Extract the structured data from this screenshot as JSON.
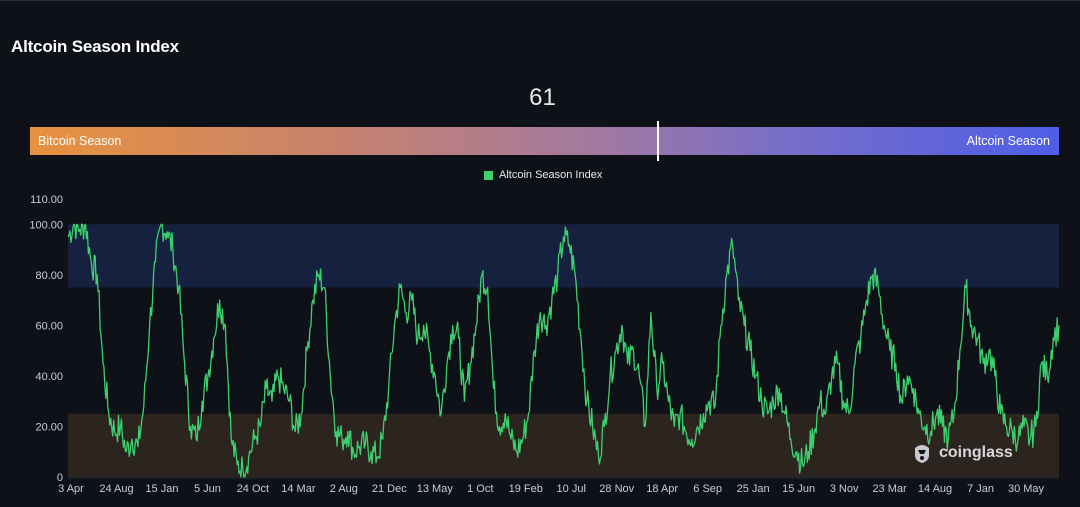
{
  "header": {
    "title": "Altcoin Season Index"
  },
  "indicator": {
    "value": "61",
    "value_number": 61,
    "left_label": "Bitcoin Season",
    "right_label": "Altcoin Season"
  },
  "watermark": {
    "text": "coinglass",
    "icon": "coinglass-logo-icon"
  },
  "colors": {
    "background": "#0e1117",
    "line": "#3ecf6e",
    "altcoin_zone": "#16213f",
    "bitcoin_zone": "#2c241f",
    "bar_start": "#e8923f",
    "bar_end": "#4e5ee6"
  },
  "chart_data": {
    "type": "line",
    "title": "",
    "legend": [
      "Altcoin Season Index"
    ],
    "legend_position": "top-center",
    "ylim": [
      0,
      110
    ],
    "yticks": [
      "0",
      "20.00",
      "40.00",
      "60.00",
      "80.00",
      "100.00",
      "110.00"
    ],
    "ytick_values": [
      0,
      20,
      40,
      60,
      80,
      100,
      110
    ],
    "x_tick_labels": [
      "3 Apr",
      "24 Aug",
      "15 Jan",
      "5 Jun",
      "24 Oct",
      "14 Mar",
      "2 Aug",
      "21 Dec",
      "13 May",
      "1 Oct",
      "19 Feb",
      "10 Jul",
      "28 Nov",
      "18 Apr",
      "6 Sep",
      "25 Jan",
      "15 Jun",
      "3 Nov",
      "23 Mar",
      "14 Aug",
      "7 Jan",
      "30 May"
    ],
    "bands": [
      {
        "name": "altcoin-season-zone",
        "from": 75,
        "to": 100
      },
      {
        "name": "bitcoin-season-zone",
        "from": 0,
        "to": 25
      }
    ],
    "grid": false,
    "series": [
      {
        "name": "Altcoin Season Index",
        "keypoints": [
          [
            0,
            95
          ],
          [
            0.25,
            100
          ],
          [
            0.5,
            98
          ],
          [
            0.75,
            100
          ],
          [
            1,
            85
          ],
          [
            1.25,
            80
          ],
          [
            1.5,
            45
          ],
          [
            1.75,
            25
          ],
          [
            2,
            18
          ],
          [
            2.25,
            20
          ],
          [
            2.5,
            10
          ],
          [
            2.75,
            15
          ],
          [
            3,
            12
          ],
          [
            3.25,
            28
          ],
          [
            3.5,
            60
          ],
          [
            3.75,
            85
          ],
          [
            4,
            100
          ],
          [
            4.25,
            97
          ],
          [
            4.5,
            90
          ],
          [
            4.75,
            75
          ],
          [
            5,
            45
          ],
          [
            5.25,
            20
          ],
          [
            5.5,
            15
          ],
          [
            5.75,
            30
          ],
          [
            6,
            40
          ],
          [
            6.25,
            55
          ],
          [
            6.5,
            70
          ],
          [
            6.75,
            60
          ],
          [
            7,
            15
          ],
          [
            7.25,
            5
          ],
          [
            7.5,
            3
          ],
          [
            7.75,
            8
          ],
          [
            8,
            15
          ],
          [
            8.25,
            20
          ],
          [
            8.5,
            35
          ],
          [
            8.75,
            30
          ],
          [
            9,
            40
          ],
          [
            9.25,
            35
          ],
          [
            9.5,
            30
          ],
          [
            9.75,
            18
          ],
          [
            10,
            25
          ],
          [
            10.25,
            50
          ],
          [
            10.5,
            70
          ],
          [
            10.75,
            80
          ],
          [
            11,
            75
          ],
          [
            11.25,
            40
          ],
          [
            11.5,
            18
          ],
          [
            11.75,
            15
          ],
          [
            12,
            18
          ],
          [
            12.25,
            10
          ],
          [
            12.5,
            12
          ],
          [
            12.75,
            13
          ],
          [
            13,
            10
          ],
          [
            13.25,
            8
          ],
          [
            13.5,
            15
          ],
          [
            13.75,
            35
          ],
          [
            14,
            60
          ],
          [
            14.25,
            75
          ],
          [
            14.5,
            65
          ],
          [
            14.75,
            70
          ],
          [
            15,
            55
          ],
          [
            15.25,
            60
          ],
          [
            15.5,
            50
          ],
          [
            15.75,
            40
          ],
          [
            16,
            25
          ],
          [
            16.25,
            45
          ],
          [
            16.5,
            60
          ],
          [
            16.75,
            55
          ],
          [
            17,
            30
          ],
          [
            17.25,
            45
          ],
          [
            17.5,
            60
          ],
          [
            17.75,
            80
          ],
          [
            18,
            75
          ],
          [
            18.25,
            35
          ],
          [
            18.5,
            20
          ],
          [
            18.75,
            25
          ],
          [
            19,
            15
          ],
          [
            19.25,
            10
          ],
          [
            19.5,
            15
          ],
          [
            19.75,
            25
          ],
          [
            20,
            50
          ],
          [
            20.25,
            65
          ],
          [
            20.5,
            60
          ],
          [
            20.75,
            70
          ],
          [
            21,
            80
          ],
          [
            21.25,
            95
          ],
          [
            21.5,
            92
          ],
          [
            21.75,
            80
          ],
          [
            22,
            55
          ],
          [
            22.25,
            30
          ],
          [
            22.5,
            20
          ],
          [
            22.75,
            8
          ],
          [
            23,
            20
          ],
          [
            23.25,
            40
          ],
          [
            23.5,
            50
          ],
          [
            23.75,
            60
          ],
          [
            24,
            45
          ],
          [
            24.25,
            50
          ],
          [
            24.5,
            40
          ],
          [
            24.75,
            20
          ],
          [
            25,
            65
          ],
          [
            25.25,
            35
          ],
          [
            25.5,
            45
          ],
          [
            25.75,
            30
          ],
          [
            26,
            20
          ],
          [
            26.25,
            25
          ],
          [
            26.5,
            18
          ],
          [
            26.75,
            15
          ],
          [
            27,
            20
          ],
          [
            27.25,
            25
          ],
          [
            27.5,
            30
          ],
          [
            27.75,
            28
          ],
          [
            28,
            60
          ],
          [
            28.25,
            80
          ],
          [
            28.5,
            92
          ],
          [
            28.75,
            70
          ],
          [
            29,
            60
          ],
          [
            29.25,
            50
          ],
          [
            29.5,
            40
          ],
          [
            29.75,
            30
          ],
          [
            30,
            25
          ],
          [
            30.25,
            30
          ],
          [
            30.5,
            35
          ],
          [
            30.75,
            25
          ],
          [
            31,
            15
          ],
          [
            31.25,
            10
          ],
          [
            31.5,
            5
          ],
          [
            31.75,
            10
          ],
          [
            32,
            18
          ],
          [
            32.25,
            30
          ],
          [
            32.5,
            25
          ],
          [
            32.75,
            40
          ],
          [
            33,
            45
          ],
          [
            33.25,
            30
          ],
          [
            33.5,
            25
          ],
          [
            33.75,
            45
          ],
          [
            34,
            55
          ],
          [
            34.25,
            70
          ],
          [
            34.5,
            80
          ],
          [
            34.75,
            75
          ],
          [
            35,
            60
          ],
          [
            35.25,
            50
          ],
          [
            35.5,
            45
          ],
          [
            35.75,
            30
          ],
          [
            36,
            40
          ],
          [
            36.25,
            35
          ],
          [
            36.5,
            25
          ],
          [
            36.75,
            20
          ],
          [
            37,
            18
          ],
          [
            37.25,
            25
          ],
          [
            37.5,
            20
          ],
          [
            37.75,
            15
          ],
          [
            38,
            25
          ],
          [
            38.25,
            50
          ],
          [
            38.5,
            75
          ],
          [
            38.75,
            60
          ],
          [
            39,
            55
          ],
          [
            39.25,
            45
          ],
          [
            39.5,
            50
          ],
          [
            39.75,
            40
          ],
          [
            40,
            25
          ],
          [
            40.25,
            20
          ],
          [
            40.5,
            18
          ],
          [
            40.75,
            15
          ],
          [
            41,
            20
          ],
          [
            41.25,
            15
          ],
          [
            41.5,
            20
          ],
          [
            41.75,
            45
          ],
          [
            42,
            40
          ],
          [
            42.25,
            55
          ],
          [
            42.5,
            60
          ]
        ]
      }
    ]
  }
}
